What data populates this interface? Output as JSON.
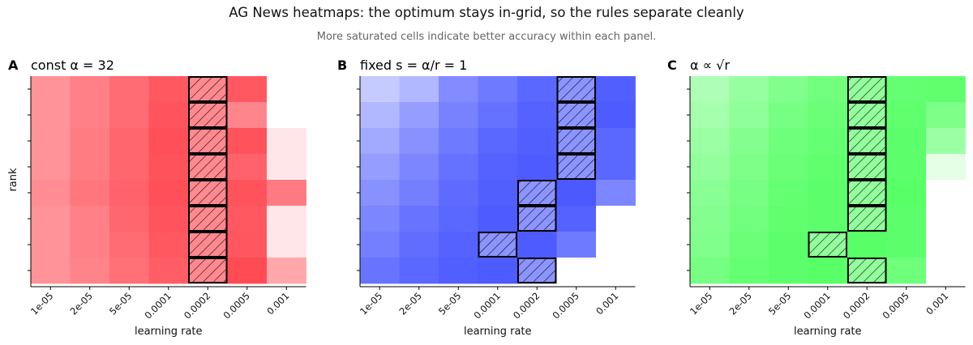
{
  "title": "AG News heatmaps: the optimum stays in-grid, so the rules separate cleanly",
  "subtitle": "More saturated cells indicate better accuracy within each panel.",
  "colors": {
    "panel_a": "#ff3b45",
    "panel_b": "#3e4dff",
    "panel_c": "#4aff5a",
    "missing": "#ffffff",
    "hatch_stroke": "#000000"
  },
  "chart_data": [
    {
      "type": "heatmap",
      "panel_letter": "A",
      "title": "const α = 32",
      "xlabel": "learning rate",
      "ylabel": "rank",
      "x_ticks": [
        "1e-05",
        "2e-05",
        "5e-05",
        "0.0001",
        "0.0002",
        "0.0005",
        "0.001"
      ],
      "y_tick_labels_shown": false,
      "rows": 8,
      "values": [
        [
          0.55,
          0.65,
          0.75,
          0.85,
          0.6,
          0.85,
          null
        ],
        [
          0.55,
          0.65,
          0.75,
          0.87,
          0.6,
          0.62,
          null
        ],
        [
          0.55,
          0.67,
          0.78,
          0.9,
          0.6,
          0.88,
          0.12
        ],
        [
          0.55,
          0.67,
          0.78,
          0.88,
          0.6,
          0.8,
          0.12
        ],
        [
          0.58,
          0.7,
          0.8,
          0.9,
          0.6,
          0.88,
          0.68
        ],
        [
          0.55,
          0.65,
          0.78,
          0.87,
          0.6,
          0.85,
          0.12
        ],
        [
          0.55,
          0.65,
          0.75,
          0.85,
          0.6,
          0.86,
          0.12
        ],
        [
          0.55,
          0.63,
          0.73,
          0.82,
          0.6,
          0.92,
          0.45
        ]
      ],
      "best_cells": [
        [
          0,
          4
        ],
        [
          1,
          4
        ],
        [
          2,
          4
        ],
        [
          3,
          4
        ],
        [
          4,
          4
        ],
        [
          5,
          4
        ],
        [
          6,
          4
        ],
        [
          7,
          4
        ]
      ]
    },
    {
      "type": "heatmap",
      "panel_letter": "B",
      "title": "fixed s = α/r = 1",
      "xlabel": "learning rate",
      "ylabel": "",
      "x_ticks": [
        "1e-05",
        "2e-05",
        "5e-05",
        "0.0001",
        "0.0002",
        "0.0005",
        "0.001"
      ],
      "y_tick_labels_shown": false,
      "rows": 8,
      "values": [
        [
          0.3,
          0.4,
          0.65,
          0.75,
          0.85,
          0.6,
          0.9
        ],
        [
          0.4,
          0.55,
          0.7,
          0.8,
          0.88,
          0.6,
          0.92
        ],
        [
          0.48,
          0.62,
          0.75,
          0.85,
          0.9,
          0.6,
          0.85
        ],
        [
          0.55,
          0.68,
          0.8,
          0.88,
          0.92,
          0.6,
          0.85
        ],
        [
          0.62,
          0.72,
          0.83,
          0.9,
          0.6,
          0.93,
          0.68
        ],
        [
          0.68,
          0.78,
          0.85,
          0.92,
          0.6,
          0.88,
          null
        ],
        [
          0.72,
          0.82,
          0.88,
          0.6,
          0.92,
          0.75,
          null
        ],
        [
          0.78,
          0.85,
          0.9,
          0.92,
          0.6,
          null,
          null
        ]
      ],
      "best_cells": [
        [
          0,
          5
        ],
        [
          1,
          5
        ],
        [
          2,
          5
        ],
        [
          3,
          5
        ],
        [
          4,
          4
        ],
        [
          5,
          4
        ],
        [
          6,
          3
        ],
        [
          7,
          4
        ]
      ]
    },
    {
      "type": "heatmap",
      "panel_letter": "C",
      "title": "α ∝ √r",
      "xlabel": "learning rate",
      "ylabel": "",
      "x_ticks": [
        "1e-05",
        "2e-05",
        "5e-05",
        "0.0001",
        "0.0002",
        "0.0005",
        "0.001"
      ],
      "y_tick_labels_shown": false,
      "rows": 8,
      "values": [
        [
          0.45,
          0.58,
          0.7,
          0.78,
          0.6,
          0.85,
          0.88
        ],
        [
          0.5,
          0.62,
          0.75,
          0.82,
          0.6,
          0.88,
          0.72
        ],
        [
          0.55,
          0.68,
          0.8,
          0.85,
          0.6,
          0.9,
          0.55
        ],
        [
          0.6,
          0.72,
          0.82,
          0.88,
          0.6,
          0.9,
          0.15
        ],
        [
          0.65,
          0.75,
          0.85,
          0.9,
          0.6,
          0.92,
          null
        ],
        [
          0.68,
          0.78,
          0.88,
          0.9,
          0.6,
          0.9,
          null
        ],
        [
          0.7,
          0.82,
          0.9,
          0.6,
          0.92,
          0.9,
          null
        ],
        [
          0.75,
          0.85,
          0.9,
          0.92,
          0.6,
          0.8,
          null
        ]
      ],
      "best_cells": [
        [
          0,
          4
        ],
        [
          1,
          4
        ],
        [
          2,
          4
        ],
        [
          3,
          4
        ],
        [
          4,
          4
        ],
        [
          5,
          4
        ],
        [
          6,
          3
        ],
        [
          7,
          4
        ]
      ]
    }
  ]
}
